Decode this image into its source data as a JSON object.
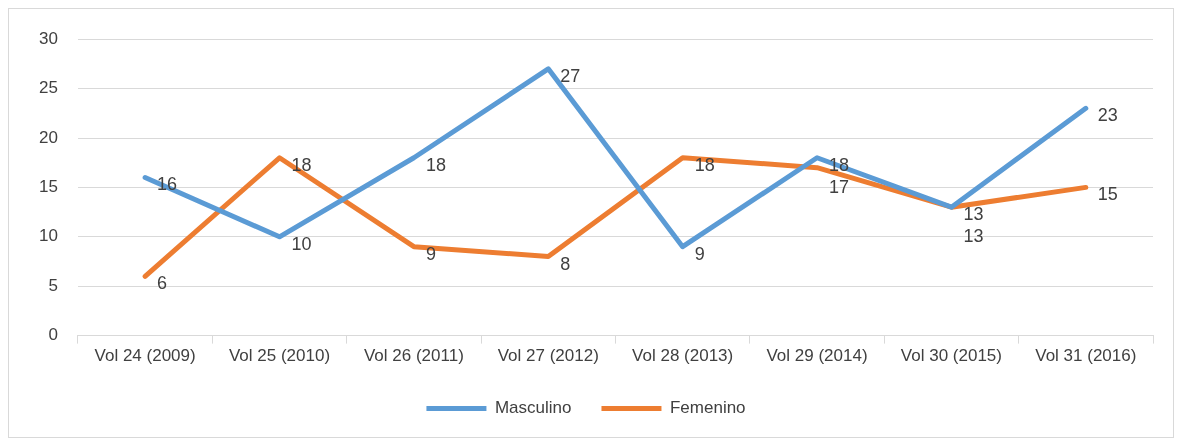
{
  "chart_data": {
    "type": "line",
    "categories": [
      "Vol 24 (2009)",
      "Vol 25 (2010)",
      "Vol 26 (2011)",
      "Vol 27 (2012)",
      "Vol 28 (2013)",
      "Vol 29 (2014)",
      "Vol 30 (2015)",
      "Vol 31 (2016)"
    ],
    "series": [
      {
        "name": "Masculino",
        "color": "#5b9bd5",
        "values": [
          16,
          10,
          18,
          27,
          9,
          18,
          13,
          23
        ]
      },
      {
        "name": "Femenino",
        "color": "#ed7d31",
        "values": [
          6,
          18,
          9,
          8,
          18,
          17,
          13,
          15
        ]
      }
    ],
    "ylim": [
      0,
      30
    ],
    "yticks": [
      0,
      5,
      10,
      15,
      20,
      25,
      30
    ],
    "grid": "y",
    "legend": "bottom",
    "data_labels": true,
    "marker": "none",
    "line_style": "solid"
  }
}
